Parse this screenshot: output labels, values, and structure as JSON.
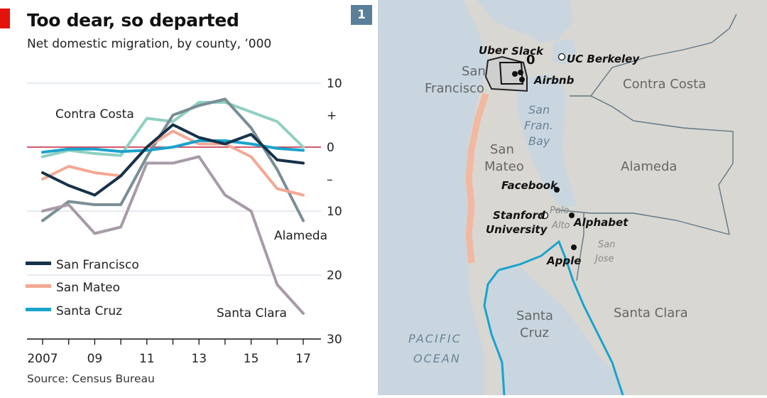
{
  "header": {
    "title": "Too dear, so departed",
    "subtitle": "Net domestic migration, by county, ’000",
    "chart_number": "1"
  },
  "source": "Source: Census Bureau",
  "chart_data": {
    "type": "line",
    "title": "Too dear, so departed",
    "subtitle": "Net domestic migration, by county, ’000",
    "x": [
      2007,
      2008,
      2009,
      2010,
      2011,
      2012,
      2013,
      2014,
      2015,
      2016,
      2017
    ],
    "x_tick_labels": [
      {
        "value": 2007,
        "label": "2007"
      },
      {
        "value": 2009,
        "label": "09"
      },
      {
        "value": 2011,
        "label": "11"
      },
      {
        "value": 2013,
        "label": "13"
      },
      {
        "value": 2015,
        "label": "15"
      },
      {
        "value": 2017,
        "label": "17"
      }
    ],
    "y_tick_labels": [
      {
        "value": 10,
        "label": "10"
      },
      {
        "value": 5,
        "label": "+"
      },
      {
        "value": 0,
        "label": "0"
      },
      {
        "value": -5,
        "label": "–"
      },
      {
        "value": -10,
        "label": "10"
      },
      {
        "value": -20,
        "label": "20"
      },
      {
        "value": -30,
        "label": "30"
      }
    ],
    "ylim": [
      -30,
      10
    ],
    "xlim": [
      2007,
      2017
    ],
    "grid": true,
    "legend_position": "bottom-left",
    "series": [
      {
        "name": "Contra Costa",
        "color": "#8fd0c0",
        "values": [
          -1.5,
          -0.5,
          -1.0,
          -1.3,
          4.5,
          4.0,
          7.0,
          7.0,
          5.5,
          4.0,
          0.0
        ],
        "label_position": "top-left"
      },
      {
        "name": "Alameda",
        "color": "#7a8e96",
        "values": [
          -11.5,
          -8.5,
          -9.0,
          -9.0,
          -1.5,
          5.0,
          6.5,
          7.5,
          3.0,
          -3.5,
          -11.5
        ],
        "label_position": "right"
      },
      {
        "name": "Santa Clara",
        "color": "#a89aa8",
        "values": [
          -10.0,
          -9.0,
          -13.5,
          -12.5,
          -2.5,
          -2.5,
          -1.5,
          -7.5,
          -10.0,
          -21.5,
          -26.0
        ],
        "label_position": "bottom"
      },
      {
        "name": "San Mateo",
        "color": "#f4a893",
        "values": [
          -5.0,
          -3.0,
          -4.0,
          -4.5,
          0.0,
          2.5,
          0.5,
          0.5,
          -1.5,
          -6.5,
          -7.5
        ],
        "legend": true
      },
      {
        "name": "Santa Cruz",
        "color": "#1aa3cc",
        "values": [
          -0.8,
          -0.3,
          -0.3,
          -0.7,
          -0.5,
          0.0,
          1.0,
          1.0,
          0.5,
          -0.2,
          -0.5
        ],
        "legend": true
      },
      {
        "name": "San Francisco",
        "color": "#17324a",
        "values": [
          -4.0,
          -6.0,
          -7.5,
          -4.5,
          0.0,
          3.5,
          1.5,
          0.5,
          2.0,
          -2.0,
          -2.5
        ],
        "legend": true
      }
    ]
  },
  "map": {
    "labels": {
      "sf_county": [
        "San",
        "Francisco"
      ],
      "sm_county": [
        "San",
        "Mateo"
      ],
      "sc_county": "Santa Clara",
      "scz_county": [
        "Santa",
        "Cruz"
      ],
      "alameda": "Alameda",
      "contra_costa": "Contra Costa",
      "bay": [
        "San",
        "Fran.",
        "Bay"
      ],
      "ocean": [
        "PACIFIC",
        "OCEAN"
      ],
      "palo_alto": [
        "Palo",
        "Alto"
      ],
      "san_jose": [
        "San",
        "Jose"
      ],
      "zero": "0"
    },
    "places": {
      "uber": "Uber",
      "slack": "Slack",
      "airbnb": "Airbnb",
      "uc_berkeley": "UC Berkeley",
      "facebook": "Facebook",
      "stanford": [
        "Stanford",
        "University"
      ],
      "alphabet": "Alphabet",
      "apple": "Apple"
    }
  }
}
